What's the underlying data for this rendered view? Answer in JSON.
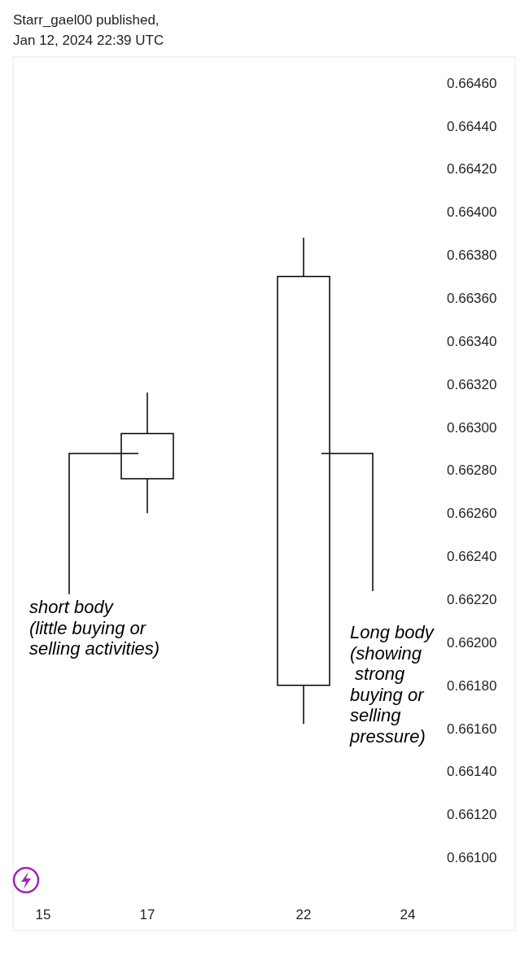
{
  "chart_data": {
    "type": "candlestick",
    "annotations": [
      "Starr_gael00 published,\nJan 12, 2024 22:39 UTC",
      "short body\n(little buying or\nselling activities)",
      "Long body\n(showing\n strong\nbuying or\nselling\npressure)"
    ],
    "categories": [
      "15",
      null,
      "17",
      null,
      null,
      "22",
      null,
      "24"
    ],
    "ohlc": [
      null,
      null,
      [
        0.66276,
        0.66316,
        0.6626,
        0.66297
      ],
      null,
      null,
      [
        0.6618,
        0.66388,
        0.66162,
        0.6637
      ],
      null,
      null
    ],
    "ylim": [
      0.66066,
      0.66472
    ],
    "yticks": [
      {
        "value": 0.661,
        "label": "0.66100"
      },
      {
        "value": 0.6612,
        "label": "0.66120"
      },
      {
        "value": 0.6614,
        "label": "0.66140"
      },
      {
        "value": 0.6616,
        "label": "0.66160"
      },
      {
        "value": 0.6618,
        "label": "0.66180"
      },
      {
        "value": 0.662,
        "label": "0.66200"
      },
      {
        "value": 0.6622,
        "label": "0.66220"
      },
      {
        "value": 0.6624,
        "label": "0.66240"
      },
      {
        "value": 0.6626,
        "label": "0.66260"
      },
      {
        "value": 0.6628,
        "label": "0.66280"
      },
      {
        "value": 0.663,
        "label": "0.66300"
      },
      {
        "value": 0.6632,
        "label": "0.66320"
      },
      {
        "value": 0.6634,
        "label": "0.66340"
      },
      {
        "value": 0.6636,
        "label": "0.66360"
      },
      {
        "value": 0.6638,
        "label": "0.66380"
      },
      {
        "value": 0.664,
        "label": "0.66400"
      },
      {
        "value": 0.6642,
        "label": "0.66420"
      },
      {
        "value": 0.6644,
        "label": "0.66440"
      },
      {
        "value": 0.6646,
        "label": "0.66460"
      }
    ],
    "grid": false
  }
}
